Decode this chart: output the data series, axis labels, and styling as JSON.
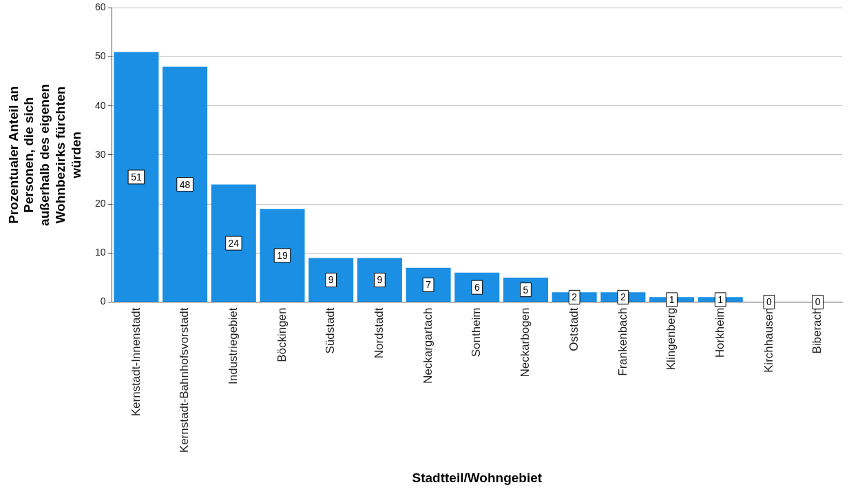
{
  "chart_data": {
    "type": "bar",
    "xlabel": "Stadtteil/Wohngebiet",
    "ylabel": "Prozentualer Anteil an Personen, die sich außerhalb des eigenen Wohnbezirks fürchten würden",
    "categories": [
      "Kernstadt-Innenstadt",
      "Kernstadt-Bahnhofsvorstadt",
      "Industriegebiet",
      "Böckingen",
      "Südstadt",
      "Nordstadt",
      "Neckargartach",
      "Sontheim",
      "Neckarbogen",
      "Oststadt",
      "Frankenbach",
      "Klingenberg",
      "Horkheim",
      "Kirchhausen",
      "Biberach"
    ],
    "values": [
      51,
      48,
      24,
      19,
      9,
      9,
      7,
      6,
      5,
      2,
      2,
      1,
      1,
      0,
      0
    ],
    "color": "#1a8fe3",
    "ylim": [
      0,
      60
    ],
    "yticks": [
      0,
      10,
      20,
      30,
      40,
      50,
      60
    ],
    "grid": "y",
    "data_labels": true,
    "legend": false
  }
}
